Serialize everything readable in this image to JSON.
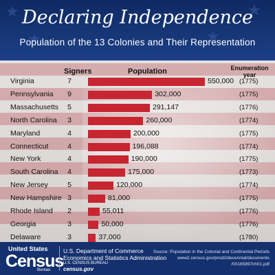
{
  "header": {
    "title": "Declaring Independence",
    "subtitle": "Population of the 13 Colonies and Their Representation"
  },
  "columns": {
    "signers": "Signers",
    "population": "Population",
    "year_line1": "Enumeration",
    "year_line2": "year"
  },
  "chart_data": {
    "type": "bar",
    "title": "Declaring Independence",
    "subtitle": "Population of the 13 Colonies and Their Representation",
    "categories": [
      "Virginia",
      "Pennsylvania",
      "Massachusetts",
      "North Carolina",
      "Maryland",
      "Connecticut",
      "New York",
      "South Carolina",
      "New Jersey",
      "New Hampshire",
      "Rhode Island",
      "Georgia",
      "Delaware"
    ],
    "signers": [
      7,
      9,
      5,
      3,
      4,
      4,
      4,
      4,
      5,
      3,
      2,
      3,
      3
    ],
    "values": [
      550000,
      302000,
      291147,
      260000,
      200000,
      196088,
      190000,
      175000,
      120000,
      81000,
      55011,
      50000,
      37000
    ],
    "value_labels": [
      "550,000",
      "302,000",
      "291,147",
      "260,000",
      "200,000",
      "196,088",
      "190,000",
      "175,000",
      "120,000",
      "81,000",
      "55,011",
      "50,000",
      "37,000"
    ],
    "years": [
      "(1775)",
      "(1775)",
      "(1776)",
      "(1774)",
      "(1775)",
      "(1774)",
      "(1775)",
      "(1773)",
      "(1774)",
      "(1775)",
      "(1776)",
      "(1776)",
      "(1780)"
    ],
    "orientation": "horizontal",
    "bar_color": "#c72631"
  },
  "footer": {
    "logo_top": "United States",
    "logo_word": "Census",
    "logo_bureau": "Bureau",
    "dept_line1": "U.S. Department of Commerce",
    "dept_line2": "Economics and Statistics Administration",
    "dept_line3": "U.S. CENSUS BUREAU",
    "dept_line4": "census.gov",
    "source_line1": "Source: Population in the Colonial and Continental Periods",
    "source_line2": "www2.census.gov/prod2/decennial/documents",
    "source_line3": "/00165897ch01.pdf"
  }
}
